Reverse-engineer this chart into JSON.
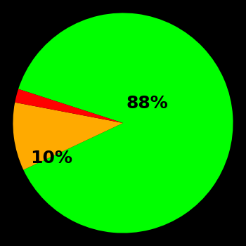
{
  "slices": [
    88,
    10,
    2
  ],
  "colors": [
    "#00ff00",
    "#ffaa00",
    "#ff0000"
  ],
  "background_color": "#000000",
  "startangle": 162,
  "label_fontsize": 18,
  "label_fontweight": "bold",
  "label_color": "#000000"
}
